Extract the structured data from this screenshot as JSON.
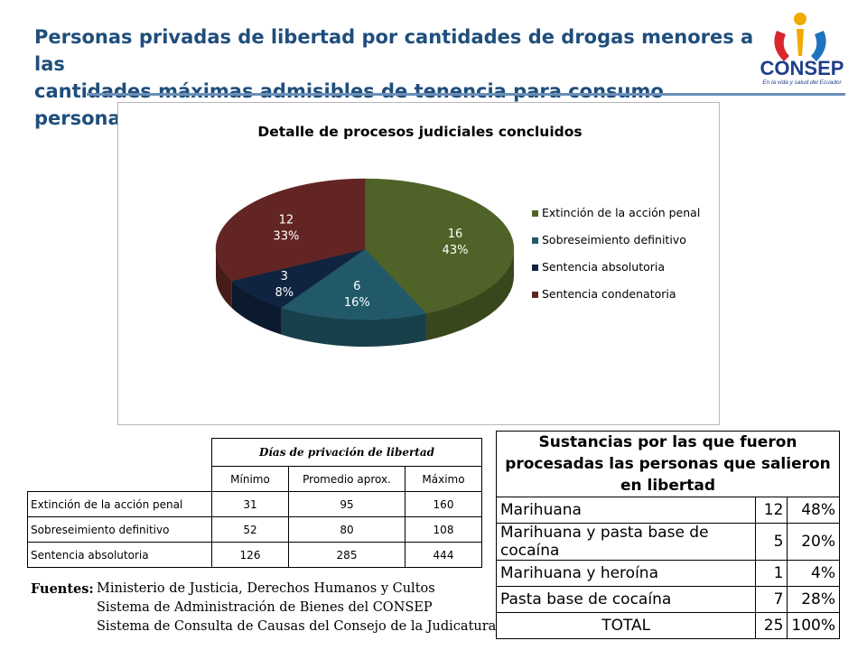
{
  "header": {
    "title_line1": "Personas privadas de libertad por cantidades de drogas menores a las",
    "title_line2": "cantidades máximas admisibles de tenencia para consumo personal"
  },
  "logo": {
    "text": "CONSEP",
    "tagline": "En la vida y salud del Ecuador",
    "colors": [
      "#f2a900",
      "#1e73be",
      "#d9262e",
      "#1e3f8a"
    ]
  },
  "chart_data": {
    "type": "pie",
    "title": "Detalle de procesos judiciales concluidos",
    "categories": [
      "Extinción de la acción penal",
      "Sobreseimiento definitivo",
      "Sentencia absolutoria",
      "Sentencia condenatoria"
    ],
    "values": [
      16,
      6,
      3,
      12
    ],
    "percent_labels": [
      "43%",
      "16%",
      "8%",
      "33%"
    ],
    "colors": [
      "#4f6228",
      "#215968",
      "#0f2440",
      "#632523"
    ],
    "legend_position": "right",
    "style": "3d"
  },
  "table_days": {
    "header": "Días de privación de libertad",
    "columns": [
      "Mínimo",
      "Promedio aprox.",
      "Máximo"
    ],
    "rows": [
      {
        "label": "Extinción de la acción penal",
        "min": "31",
        "avg": "95",
        "max": "160"
      },
      {
        "label": "Sobreseimiento definitivo",
        "min": "52",
        "avg": "80",
        "max": "108"
      },
      {
        "label": "Sentencia absolutoria",
        "min": "126",
        "avg": "285",
        "max": "444"
      }
    ]
  },
  "table_substances": {
    "caption": "Sustancias por las que fueron procesadas las personas que salieron en libertad",
    "rows": [
      {
        "name": "Marihuana",
        "count": "12",
        "pct": "48%"
      },
      {
        "name": "Marihuana y pasta base de cocaína",
        "count": "5",
        "pct": "20%"
      },
      {
        "name": "Marihuana y heroína",
        "count": "1",
        "pct": "4%"
      },
      {
        "name": "Pasta base de cocaína",
        "count": "7",
        "pct": "28%"
      }
    ],
    "total": {
      "name": "TOTAL",
      "count": "25",
      "pct": "100%"
    }
  },
  "sources": {
    "label": "Fuentes:",
    "lines": [
      "Ministerio de Justicia, Derechos Humanos y Cultos",
      "Sistema de Administración de Bienes del CONSEP",
      "Sistema de Consulta de Causas del Consejo de la Judicatura"
    ]
  }
}
